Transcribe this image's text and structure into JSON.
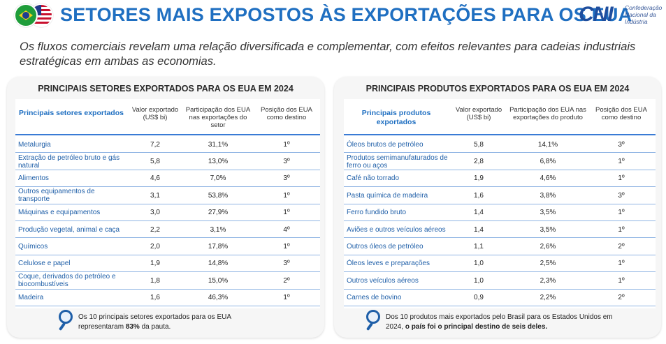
{
  "header": {
    "title": "SETORES MAIS EXPOSTOS ÀS EXPORTAÇÕES PARA OS EUA",
    "logo_mark": "CNI",
    "logo_text": "Confederação Nacional da Indústria",
    "flags": [
      "brazil-flag",
      "usa-flag"
    ]
  },
  "subtitle": "Os fluxos comerciais revelam uma relação diversificada e complementar, com efeitos relevantes para cadeias industriais estratégicas em ambas as economias.",
  "left_panel": {
    "title": "PRINCIPAIS SETORES EXPORTADOS PARA OS EUA EM 2024",
    "headers": [
      "Principais setores exportados",
      "Valor exportado (US$ bi)",
      "Participação dos EUA nas exportações do setor",
      "Posição dos EUA como destino"
    ],
    "rows": [
      [
        "Metalurgia",
        "7,2",
        "31,1%",
        "1º"
      ],
      [
        "Extração de petróleo bruto e gás natural",
        "5,8",
        "13,0%",
        "3º"
      ],
      [
        "Alimentos",
        "4,6",
        "7,0%",
        "3º"
      ],
      [
        "Outros equipamentos de transporte",
        "3,1",
        "53,8%",
        "1º"
      ],
      [
        "Máquinas e equipamentos",
        "3,0",
        "27,9%",
        "1º"
      ],
      [
        "Produção vegetal, animal e caça",
        "2,2",
        "3,1%",
        "4º"
      ],
      [
        "Químicos",
        "2,0",
        "17,8%",
        "1º"
      ],
      [
        "Celulose e papel",
        "1,9",
        "14,8%",
        "3º"
      ],
      [
        "Coque, derivados do petróleo e biocombustíveis",
        "1,8",
        "15,0%",
        "2º"
      ],
      [
        "Madeira",
        "1,6",
        "46,3%",
        "1º"
      ]
    ],
    "note_prefix": "Os 10 principais setores exportados para os EUA representaram ",
    "note_bold": "83%",
    "note_suffix": " da pauta."
  },
  "right_panel": {
    "title": "PRINCIPAIS PRODUTOS EXPORTADOS PARA OS EUA EM 2024",
    "headers": [
      "Principais produtos exportados",
      "Valor exportado (US$ bi)",
      "Participação dos EUA nas exportações do produto",
      "Posição dos EUA como destino"
    ],
    "rows": [
      [
        "Óleos brutos de petróleo",
        "5,8",
        "14,1%",
        "3º"
      ],
      [
        "Produtos semimanufaturados de ferro ou aços",
        "2,8",
        "6,8%",
        "1º"
      ],
      [
        "Café não torrado",
        "1,9",
        "4,6%",
        "1º"
      ],
      [
        "Pasta química de madeira",
        "1,6",
        "3,8%",
        "3º"
      ],
      [
        "Ferro fundido bruto",
        "1,4",
        "3,5%",
        "1º"
      ],
      [
        "Aviões e outros veículos aéreos",
        "1,4",
        "3,5%",
        "1º"
      ],
      [
        "Outros óleos de petróleo",
        "1,1",
        "2,6%",
        "2º"
      ],
      [
        "Óleos leves e preparações",
        "1,0",
        "2,5%",
        "1º"
      ],
      [
        "Outros veículos aéreos",
        "1,0",
        "2,3%",
        "1º"
      ],
      [
        "Carnes de bovino",
        "0,9",
        "2,2%",
        "2º"
      ]
    ],
    "note_prefix": "Dos 10 produtos mais exportados pelo Brasil para os Estados Unidos em 2024, ",
    "note_bold": "o país foi o principal destino de seis deles.",
    "note_suffix": ""
  },
  "icons": {
    "note_icon": "magnifier-icon"
  },
  "colors": {
    "accent": "#1f6fc1",
    "row_line": "#8fb4e3",
    "panel_bg": "#f6f6f6"
  }
}
